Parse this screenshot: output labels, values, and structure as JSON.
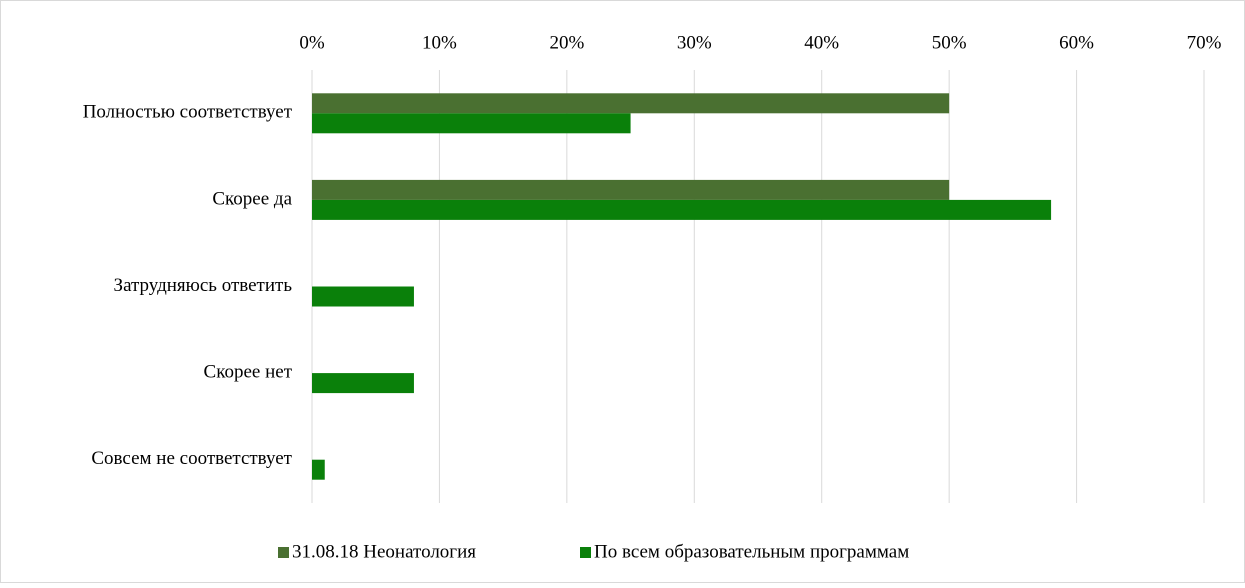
{
  "chart_data": {
    "type": "hbar",
    "categories": [
      "Полностью соответствует",
      "Скорее да",
      "Затрудняюсь ответить",
      "Скорее нет",
      "Совсем не соответствует"
    ],
    "series": [
      {
        "name": "31.08.18 Неонатология",
        "color": "#4a7031",
        "values": [
          50,
          50,
          0,
          0,
          0
        ]
      },
      {
        "name": "По всем образовательным программам",
        "color": "#0a800a",
        "values": [
          25,
          58,
          8,
          8,
          1
        ]
      }
    ],
    "xlim": [
      0,
      70
    ],
    "xticks": [
      {
        "value": 0,
        "label": "0%"
      },
      {
        "value": 10,
        "label": "10%"
      },
      {
        "value": 20,
        "label": "20%"
      },
      {
        "value": 30,
        "label": "30%"
      },
      {
        "value": 40,
        "label": "40%"
      },
      {
        "value": 50,
        "label": "50%"
      },
      {
        "value": 60,
        "label": "60%"
      },
      {
        "value": 70,
        "label": "70%"
      }
    ],
    "grid": true,
    "legend": "bottom"
  }
}
